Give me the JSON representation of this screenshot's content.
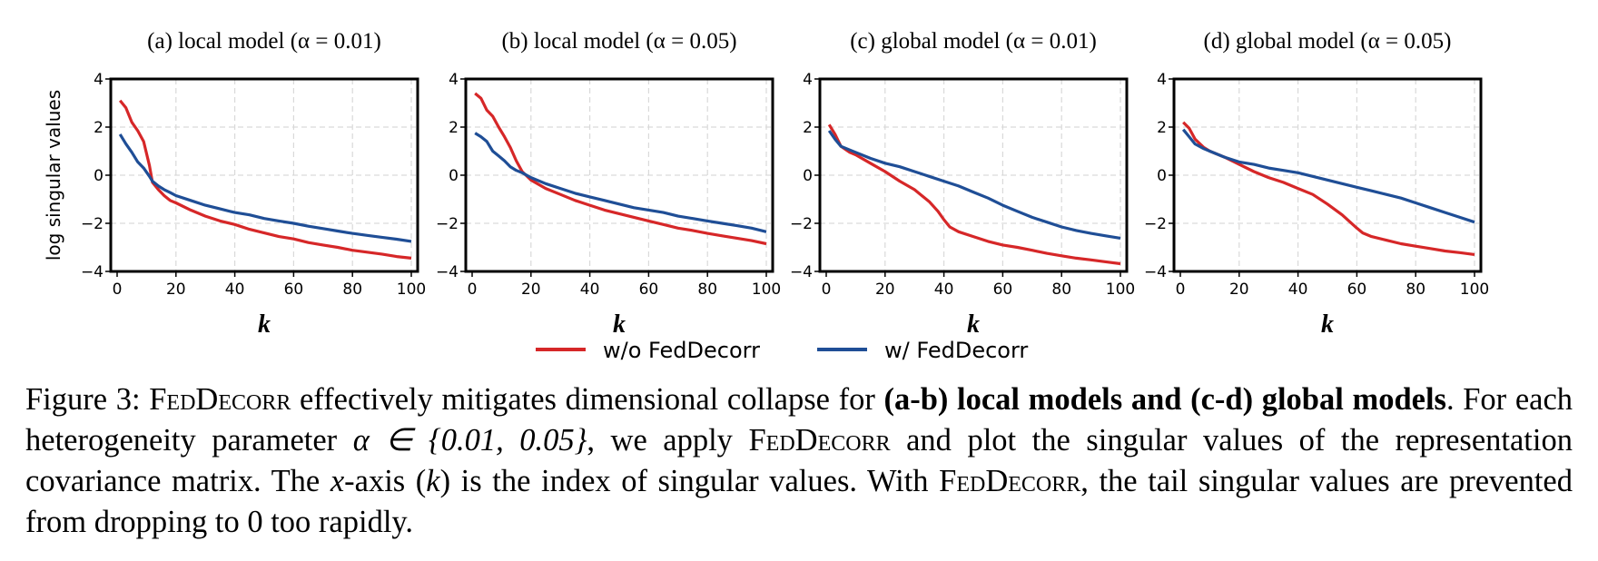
{
  "chart_data": [
    {
      "type": "line",
      "title": "(a) local model (α = 0.01)",
      "xlabel": "k",
      "ylabel": "log singular values",
      "xlim": [
        0,
        100
      ],
      "ylim": [
        -4,
        4
      ],
      "xticks": [
        "0",
        "20",
        "40",
        "60",
        "80",
        "100"
      ],
      "yticks": [
        "4",
        "2",
        "0",
        "−2",
        "−4"
      ],
      "grid": true,
      "series": [
        {
          "name": "w/o FedDecorr",
          "color": "#d62728",
          "points": [
            [
              1,
              3.1
            ],
            [
              3,
              2.8
            ],
            [
              5,
              2.2
            ],
            [
              7,
              1.85
            ],
            [
              9,
              1.4
            ],
            [
              11,
              0.4
            ],
            [
              12,
              -0.3
            ],
            [
              14,
              -0.6
            ],
            [
              16,
              -0.85
            ],
            [
              18,
              -1.05
            ],
            [
              20,
              -1.15
            ],
            [
              25,
              -1.45
            ],
            [
              30,
              -1.7
            ],
            [
              35,
              -1.9
            ],
            [
              40,
              -2.05
            ],
            [
              45,
              -2.25
            ],
            [
              50,
              -2.4
            ],
            [
              55,
              -2.55
            ],
            [
              60,
              -2.65
            ],
            [
              65,
              -2.8
            ],
            [
              70,
              -2.9
            ],
            [
              75,
              -3.0
            ],
            [
              80,
              -3.12
            ],
            [
              85,
              -3.2
            ],
            [
              90,
              -3.28
            ],
            [
              95,
              -3.38
            ],
            [
              100,
              -3.45
            ]
          ]
        },
        {
          "name": "w/ FedDecorr",
          "color": "#1f4e96",
          "points": [
            [
              1,
              1.7
            ],
            [
              3,
              1.3
            ],
            [
              5,
              0.95
            ],
            [
              7,
              0.55
            ],
            [
              9,
              0.3
            ],
            [
              11,
              -0.05
            ],
            [
              12,
              -0.25
            ],
            [
              14,
              -0.45
            ],
            [
              16,
              -0.6
            ],
            [
              18,
              -0.72
            ],
            [
              20,
              -0.85
            ],
            [
              25,
              -1.05
            ],
            [
              30,
              -1.25
            ],
            [
              35,
              -1.4
            ],
            [
              40,
              -1.55
            ],
            [
              45,
              -1.65
            ],
            [
              50,
              -1.8
            ],
            [
              55,
              -1.9
            ],
            [
              60,
              -2.0
            ],
            [
              65,
              -2.12
            ],
            [
              70,
              -2.22
            ],
            [
              75,
              -2.32
            ],
            [
              80,
              -2.42
            ],
            [
              85,
              -2.5
            ],
            [
              90,
              -2.58
            ],
            [
              95,
              -2.66
            ],
            [
              100,
              -2.75
            ]
          ]
        }
      ]
    },
    {
      "type": "line",
      "title": "(b) local model (α = 0.05)",
      "xlabel": "k",
      "ylabel": "",
      "xlim": [
        0,
        100
      ],
      "ylim": [
        -4,
        4
      ],
      "xticks": [
        "0",
        "20",
        "40",
        "60",
        "80",
        "100"
      ],
      "yticks": [
        "4",
        "2",
        "0",
        "−2",
        "−4"
      ],
      "grid": true,
      "series": [
        {
          "name": "w/o FedDecorr",
          "color": "#d62728",
          "points": [
            [
              1,
              3.4
            ],
            [
              3,
              3.2
            ],
            [
              5,
              2.7
            ],
            [
              7,
              2.45
            ],
            [
              9,
              2.0
            ],
            [
              11,
              1.6
            ],
            [
              13,
              1.15
            ],
            [
              15,
              0.6
            ],
            [
              17,
              0.15
            ],
            [
              20,
              -0.2
            ],
            [
              25,
              -0.55
            ],
            [
              30,
              -0.8
            ],
            [
              35,
              -1.05
            ],
            [
              40,
              -1.25
            ],
            [
              45,
              -1.45
            ],
            [
              50,
              -1.6
            ],
            [
              55,
              -1.75
            ],
            [
              60,
              -1.9
            ],
            [
              65,
              -2.05
            ],
            [
              70,
              -2.2
            ],
            [
              75,
              -2.3
            ],
            [
              80,
              -2.42
            ],
            [
              85,
              -2.52
            ],
            [
              90,
              -2.62
            ],
            [
              95,
              -2.72
            ],
            [
              100,
              -2.85
            ]
          ]
        },
        {
          "name": "w/ FedDecorr",
          "color": "#1f4e96",
          "points": [
            [
              1,
              1.75
            ],
            [
              3,
              1.6
            ],
            [
              5,
              1.4
            ],
            [
              7,
              1.0
            ],
            [
              9,
              0.8
            ],
            [
              11,
              0.6
            ],
            [
              13,
              0.35
            ],
            [
              15,
              0.2
            ],
            [
              17,
              0.1
            ],
            [
              20,
              -0.1
            ],
            [
              25,
              -0.35
            ],
            [
              30,
              -0.55
            ],
            [
              35,
              -0.75
            ],
            [
              40,
              -0.9
            ],
            [
              45,
              -1.05
            ],
            [
              50,
              -1.2
            ],
            [
              55,
              -1.35
            ],
            [
              60,
              -1.45
            ],
            [
              65,
              -1.55
            ],
            [
              70,
              -1.7
            ],
            [
              75,
              -1.8
            ],
            [
              80,
              -1.9
            ],
            [
              85,
              -2.0
            ],
            [
              90,
              -2.1
            ],
            [
              95,
              -2.2
            ],
            [
              100,
              -2.35
            ]
          ]
        }
      ]
    },
    {
      "type": "line",
      "title": "(c) global model (α = 0.01)",
      "xlabel": "k",
      "ylabel": "",
      "xlim": [
        0,
        100
      ],
      "ylim": [
        -4,
        4
      ],
      "xticks": [
        "0",
        "20",
        "40",
        "60",
        "80",
        "100"
      ],
      "yticks": [
        "4",
        "2",
        "0",
        "−2",
        "−4"
      ],
      "grid": true,
      "series": [
        {
          "name": "w/o FedDecorr",
          "color": "#d62728",
          "points": [
            [
              1,
              2.1
            ],
            [
              3,
              1.7
            ],
            [
              5,
              1.2
            ],
            [
              8,
              0.95
            ],
            [
              10,
              0.85
            ],
            [
              15,
              0.5
            ],
            [
              20,
              0.15
            ],
            [
              25,
              -0.25
            ],
            [
              30,
              -0.6
            ],
            [
              35,
              -1.1
            ],
            [
              38,
              -1.5
            ],
            [
              40,
              -1.85
            ],
            [
              42,
              -2.15
            ],
            [
              45,
              -2.35
            ],
            [
              50,
              -2.55
            ],
            [
              55,
              -2.75
            ],
            [
              60,
              -2.9
            ],
            [
              65,
              -3.0
            ],
            [
              70,
              -3.12
            ],
            [
              75,
              -3.25
            ],
            [
              80,
              -3.35
            ],
            [
              85,
              -3.45
            ],
            [
              90,
              -3.52
            ],
            [
              95,
              -3.6
            ],
            [
              100,
              -3.68
            ]
          ]
        },
        {
          "name": "w/ FedDecorr",
          "color": "#1f4e96",
          "points": [
            [
              1,
              1.85
            ],
            [
              3,
              1.5
            ],
            [
              5,
              1.2
            ],
            [
              8,
              1.05
            ],
            [
              10,
              0.95
            ],
            [
              15,
              0.7
            ],
            [
              20,
              0.5
            ],
            [
              25,
              0.35
            ],
            [
              30,
              0.15
            ],
            [
              35,
              -0.05
            ],
            [
              40,
              -0.25
            ],
            [
              45,
              -0.45
            ],
            [
              50,
              -0.7
            ],
            [
              55,
              -0.95
            ],
            [
              60,
              -1.25
            ],
            [
              65,
              -1.5
            ],
            [
              70,
              -1.75
            ],
            [
              75,
              -1.95
            ],
            [
              80,
              -2.15
            ],
            [
              85,
              -2.3
            ],
            [
              90,
              -2.42
            ],
            [
              95,
              -2.52
            ],
            [
              100,
              -2.62
            ]
          ]
        }
      ]
    },
    {
      "type": "line",
      "title": "(d) global model (α = 0.05)",
      "xlabel": "k",
      "ylabel": "",
      "xlim": [
        0,
        100
      ],
      "ylim": [
        -4,
        4
      ],
      "xticks": [
        "0",
        "20",
        "40",
        "60",
        "80",
        "100"
      ],
      "yticks": [
        "4",
        "2",
        "0",
        "−2",
        "−4"
      ],
      "grid": true,
      "series": [
        {
          "name": "w/o FedDecorr",
          "color": "#d62728",
          "points": [
            [
              1,
              2.2
            ],
            [
              3,
              1.95
            ],
            [
              5,
              1.5
            ],
            [
              8,
              1.15
            ],
            [
              10,
              1.0
            ],
            [
              15,
              0.75
            ],
            [
              20,
              0.45
            ],
            [
              25,
              0.15
            ],
            [
              30,
              -0.1
            ],
            [
              35,
              -0.3
            ],
            [
              40,
              -0.55
            ],
            [
              45,
              -0.8
            ],
            [
              50,
              -1.2
            ],
            [
              55,
              -1.65
            ],
            [
              60,
              -2.2
            ],
            [
              62,
              -2.4
            ],
            [
              65,
              -2.55
            ],
            [
              70,
              -2.7
            ],
            [
              75,
              -2.85
            ],
            [
              80,
              -2.95
            ],
            [
              85,
              -3.05
            ],
            [
              90,
              -3.15
            ],
            [
              95,
              -3.22
            ],
            [
              100,
              -3.3
            ]
          ]
        },
        {
          "name": "w/ FedDecorr",
          "color": "#1f4e96",
          "points": [
            [
              1,
              1.9
            ],
            [
              3,
              1.6
            ],
            [
              5,
              1.3
            ],
            [
              8,
              1.1
            ],
            [
              10,
              1.0
            ],
            [
              15,
              0.75
            ],
            [
              20,
              0.55
            ],
            [
              25,
              0.45
            ],
            [
              30,
              0.3
            ],
            [
              35,
              0.2
            ],
            [
              40,
              0.1
            ],
            [
              45,
              -0.05
            ],
            [
              50,
              -0.2
            ],
            [
              55,
              -0.35
            ],
            [
              60,
              -0.5
            ],
            [
              65,
              -0.65
            ],
            [
              70,
              -0.8
            ],
            [
              75,
              -0.95
            ],
            [
              80,
              -1.15
            ],
            [
              85,
              -1.35
            ],
            [
              90,
              -1.55
            ],
            [
              95,
              -1.75
            ],
            [
              100,
              -1.95
            ]
          ]
        }
      ]
    }
  ],
  "legend": {
    "items": [
      {
        "label": "w/o FedDecorr",
        "color": "#d62728"
      },
      {
        "label": "w/ FedDecorr",
        "color": "#1f4e96"
      }
    ],
    "placement": "bottom-center"
  },
  "caption": {
    "figure_label": "Figure 3:",
    "name_caps": "FedDecorr",
    "line1_a": " effectively mitigates dimensional collapse for ",
    "line1_bold": "(a-b) local models and (c-d) global models",
    "line2_a": ". For each heterogeneity parameter ",
    "alpha_expr": "α ∈ {0.01, 0.05}",
    "line2_b": ", we apply ",
    "line2_c": " and plot the singular values of the representation covariance matrix. The ",
    "x_var": "x",
    "line3_a": "-axis (",
    "k_var": "k",
    "line3_b": ") is the index of singular values. With ",
    "line4_a": ", the tail singular values are prevented from dropping to 0 too rapidly."
  }
}
